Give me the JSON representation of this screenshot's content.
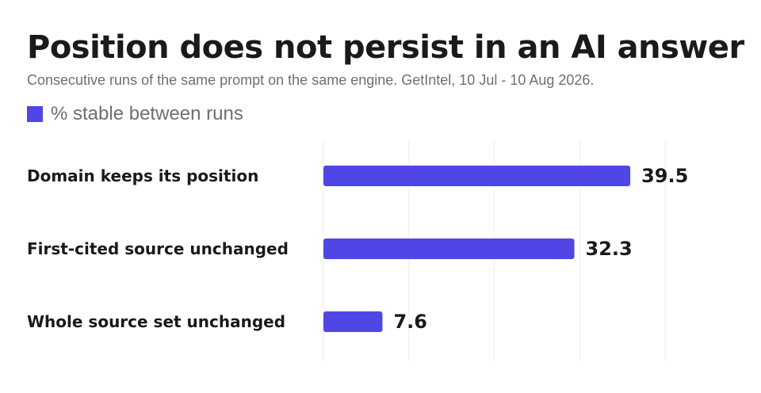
{
  "title": "Position does not persist in an AI answer",
  "subtitle": "Consecutive runs of the same prompt on the same engine. GetIntel, 10 Jul - 10 Aug 2026.",
  "chart_data": {
    "type": "bar",
    "orientation": "horizontal",
    "categories": [
      "Domain keeps its position",
      "First-cited source unchanged",
      "Whole source set unchanged"
    ],
    "series": [
      {
        "name": "% stable between runs",
        "values": [
          39.5,
          32.3,
          7.6
        ],
        "color": "#4f46e5"
      }
    ],
    "xlim": [
      0,
      44
    ],
    "grid": true,
    "legend_position": "top-left",
    "value_labels": true
  }
}
